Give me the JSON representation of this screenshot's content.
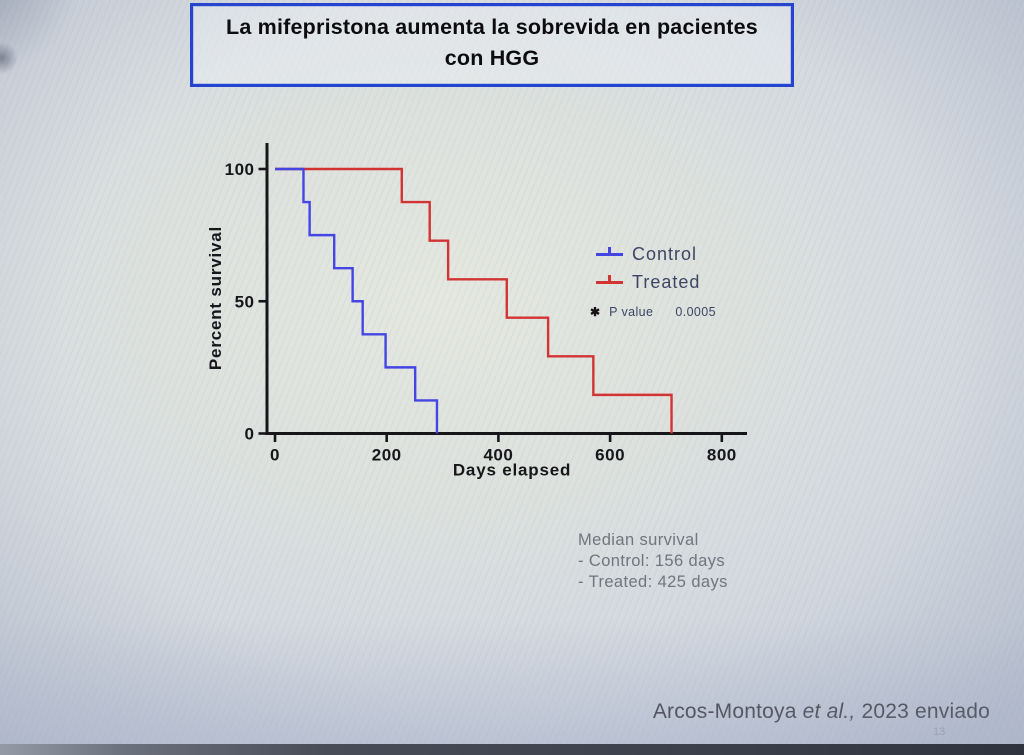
{
  "slide": {
    "title_line1": "La mifepristona aumenta la sobrevida en pacientes",
    "title_line2": "con HGG",
    "page_number": "13"
  },
  "chart_data": {
    "type": "line",
    "subtype": "kaplan-meier-survival-steps",
    "title": "",
    "xlabel": "Days elapsed",
    "ylabel": "Percent survival",
    "xlim": [
      0,
      850
    ],
    "ylim": [
      0,
      100
    ],
    "x_ticks": [
      0,
      200,
      400,
      600,
      800
    ],
    "y_ticks": [
      0,
      50,
      100
    ],
    "grid": false,
    "legend_position": "inside-right",
    "series": [
      {
        "name": "Control",
        "color": "#4545e4",
        "start_percent": 100,
        "event_days": [
          51,
          62,
          106,
          139,
          157,
          198,
          251,
          290
        ],
        "percent_after_event": [
          87.5,
          75,
          62.5,
          50,
          37.5,
          25,
          12.5,
          0
        ]
      },
      {
        "name": "Treated",
        "color": "#d23434",
        "start_percent": 100,
        "event_days": [
          227,
          277,
          310,
          415,
          489,
          570,
          710
        ],
        "percent_after_event": [
          87.5,
          72.9,
          58.3,
          43.8,
          29.2,
          14.6,
          0
        ]
      }
    ],
    "annotations": {
      "significance_marker": "✱",
      "p_label": "P value",
      "p_value": "0.0005"
    },
    "median_survival_days": {
      "control": 156,
      "treated": 425
    }
  },
  "median_note": {
    "line1": "Median survival",
    "line2": "- Control: 156 days",
    "line3": "- Treated: 425 days"
  },
  "citation": {
    "prefix": "Arcos-Montoya ",
    "italic": "et al.,",
    "suffix": " 2023 enviado"
  }
}
